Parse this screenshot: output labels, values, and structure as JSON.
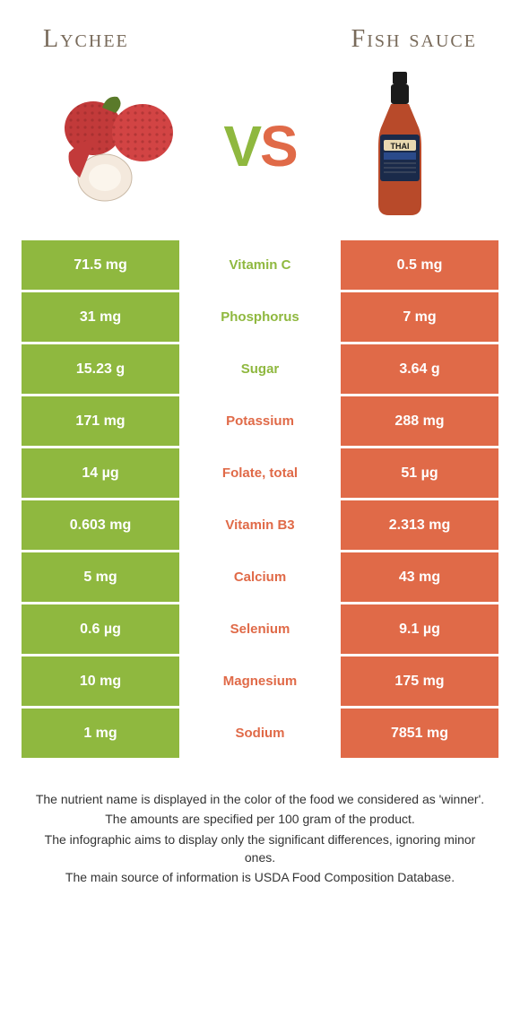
{
  "colors": {
    "left": "#8fb83f",
    "right": "#e06a48",
    "title": "#786a5a"
  },
  "titles": {
    "left": "Lychee",
    "right": "Fish sauce"
  },
  "vs": {
    "v": "V",
    "s": "S"
  },
  "rows": [
    {
      "left": "71.5 mg",
      "name": "Vitamin C",
      "right": "0.5 mg",
      "winner": "left"
    },
    {
      "left": "31 mg",
      "name": "Phosphorus",
      "right": "7 mg",
      "winner": "left"
    },
    {
      "left": "15.23 g",
      "name": "Sugar",
      "right": "3.64 g",
      "winner": "left"
    },
    {
      "left": "171 mg",
      "name": "Potassium",
      "right": "288 mg",
      "winner": "right"
    },
    {
      "left": "14 µg",
      "name": "Folate, total",
      "right": "51 µg",
      "winner": "right"
    },
    {
      "left": "0.603 mg",
      "name": "Vitamin B3",
      "right": "2.313 mg",
      "winner": "right"
    },
    {
      "left": "5 mg",
      "name": "Calcium",
      "right": "43 mg",
      "winner": "right"
    },
    {
      "left": "0.6 µg",
      "name": "Selenium",
      "right": "9.1 µg",
      "winner": "right"
    },
    {
      "left": "10 mg",
      "name": "Magnesium",
      "right": "175 mg",
      "winner": "right"
    },
    {
      "left": "1 mg",
      "name": "Sodium",
      "right": "7851 mg",
      "winner": "right"
    }
  ],
  "footnotes": [
    "The nutrient name is displayed in the color of the food we considered as 'winner'.",
    "The amounts are specified per 100 gram of the product.",
    "The infographic aims to display only the significant differences, ignoring minor ones.",
    "The main source of information is USDA Food Composition Database."
  ]
}
